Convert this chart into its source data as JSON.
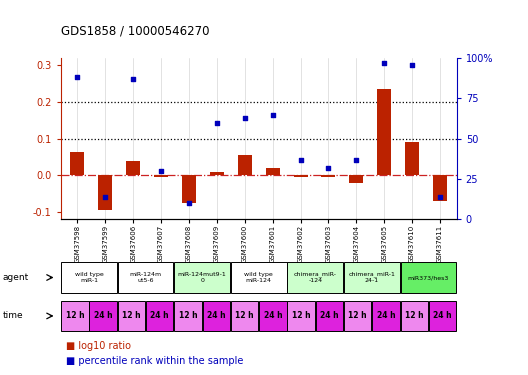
{
  "title": "GDS1858 / 10000546270",
  "samples": [
    "GSM37598",
    "GSM37599",
    "GSM37606",
    "GSM37607",
    "GSM37608",
    "GSM37609",
    "GSM37600",
    "GSM37601",
    "GSM37602",
    "GSM37603",
    "GSM37604",
    "GSM37605",
    "GSM37610",
    "GSM37611"
  ],
  "log10_ratio": [
    0.065,
    -0.095,
    0.038,
    -0.005,
    -0.075,
    0.01,
    0.055,
    0.02,
    -0.005,
    -0.005,
    -0.02,
    0.235,
    0.09,
    -0.07
  ],
  "percentile_rank": [
    88,
    14,
    87,
    30,
    10,
    60,
    63,
    65,
    37,
    32,
    37,
    97,
    96,
    14
  ],
  "agents": [
    {
      "label": "wild type\nmiR-1",
      "cols": [
        0,
        1
      ],
      "color": "#ffffff"
    },
    {
      "label": "miR-124m\nut5-6",
      "cols": [
        2,
        3
      ],
      "color": "#ffffff"
    },
    {
      "label": "miR-124mut9-1\n0",
      "cols": [
        4,
        5
      ],
      "color": "#ccffcc"
    },
    {
      "label": "wild type\nmiR-124",
      "cols": [
        6,
        7
      ],
      "color": "#ffffff"
    },
    {
      "label": "chimera_miR-\n-124",
      "cols": [
        8,
        9
      ],
      "color": "#ccffcc"
    },
    {
      "label": "chimera_miR-1\n24-1",
      "cols": [
        10,
        11
      ],
      "color": "#ccffcc"
    },
    {
      "label": "miR373/hes3",
      "cols": [
        12,
        13
      ],
      "color": "#66ee66"
    }
  ],
  "time_labels": [
    "12 h",
    "24 h",
    "12 h",
    "24 h",
    "12 h",
    "24 h",
    "12 h",
    "24 h",
    "12 h",
    "24 h",
    "12 h",
    "24 h",
    "12 h",
    "24 h"
  ],
  "time_colors_alt": [
    "#ee88ee",
    "#dd22dd"
  ],
  "ylim_left": [
    -0.12,
    0.32
  ],
  "ylim_right": [
    0,
    100
  ],
  "yticks_left": [
    -0.1,
    0.0,
    0.1,
    0.2,
    0.3
  ],
  "yticks_right": [
    0,
    25,
    50,
    75,
    100
  ],
  "bar_color": "#bb2200",
  "dot_color": "#0000bb",
  "hline_color": "#cc2222",
  "dotted_line_color": "#000000"
}
